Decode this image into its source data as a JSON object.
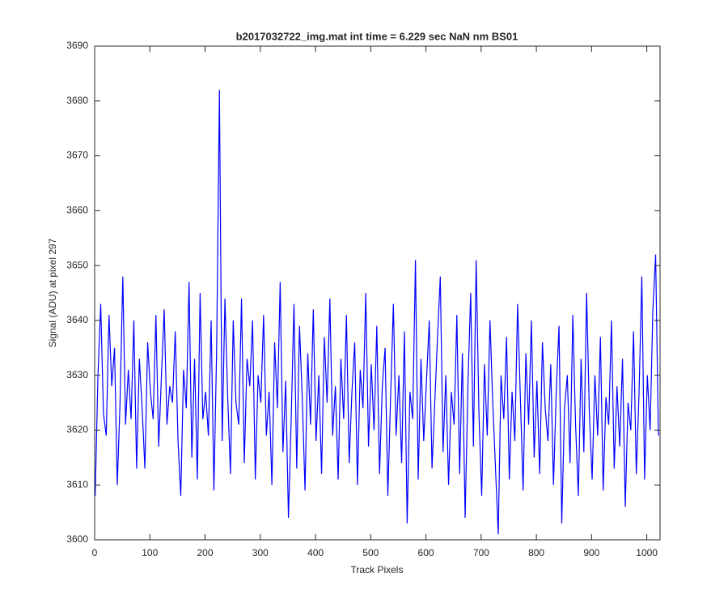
{
  "chart_data": {
    "type": "line",
    "title": "b2017032722_img.mat int time = 6.229 sec  NaN nm BS01",
    "x_label": "Track Pixels",
    "y_label": "Signal (ADU) at pixel 297",
    "xlim": [
      0,
      1024
    ],
    "ylim": [
      3600,
      3690
    ],
    "xticks": [
      0,
      100,
      200,
      300,
      400,
      500,
      600,
      700,
      800,
      900,
      1000
    ],
    "yticks": [
      3600,
      3610,
      3620,
      3630,
      3640,
      3650,
      3660,
      3670,
      3680,
      3690
    ],
    "grid": false,
    "x": [
      1,
      6,
      11,
      16,
      21,
      26,
      31,
      36,
      41,
      46,
      51,
      56,
      61,
      66,
      71,
      76,
      81,
      86,
      91,
      96,
      101,
      106,
      111,
      116,
      121,
      126,
      131,
      136,
      141,
      146,
      151,
      156,
      161,
      166,
      171,
      176,
      181,
      186,
      191,
      196,
      201,
      206,
      211,
      216,
      221,
      226,
      231,
      236,
      241,
      246,
      251,
      256,
      261,
      266,
      271,
      276,
      281,
      286,
      291,
      296,
      301,
      306,
      311,
      316,
      321,
      326,
      331,
      336,
      341,
      346,
      351,
      356,
      361,
      366,
      371,
      376,
      381,
      386,
      391,
      396,
      401,
      406,
      411,
      416,
      421,
      426,
      431,
      436,
      441,
      446,
      451,
      456,
      461,
      466,
      471,
      476,
      481,
      486,
      491,
      496,
      501,
      506,
      511,
      516,
      521,
      526,
      531,
      536,
      541,
      546,
      551,
      556,
      561,
      566,
      571,
      576,
      581,
      586,
      591,
      596,
      601,
      606,
      611,
      616,
      621,
      626,
      631,
      636,
      641,
      646,
      651,
      656,
      661,
      666,
      671,
      676,
      681,
      686,
      691,
      696,
      701,
      706,
      711,
      716,
      721,
      726,
      731,
      736,
      741,
      746,
      751,
      756,
      761,
      766,
      771,
      776,
      781,
      786,
      791,
      796,
      801,
      806,
      811,
      816,
      821,
      826,
      831,
      836,
      841,
      846,
      851,
      856,
      861,
      866,
      871,
      876,
      881,
      886,
      891,
      896,
      901,
      906,
      911,
      916,
      921,
      926,
      931,
      936,
      941,
      946,
      951,
      956,
      961,
      966,
      971,
      976,
      981,
      986,
      991,
      996,
      1001,
      1006,
      1011,
      1016,
      1021
    ],
    "series": [
      {
        "color": "#0000ff",
        "values": [
          3608,
          3630,
          3643,
          3623,
          3619,
          3641,
          3628,
          3635,
          3610,
          3625,
          3648,
          3621,
          3631,
          3622,
          3640,
          3613,
          3633,
          3624,
          3613,
          3636,
          3627,
          3622,
          3641,
          3617,
          3630,
          3642,
          3621,
          3628,
          3625,
          3638,
          3618,
          3608,
          3631,
          3624,
          3647,
          3615,
          3633,
          3611,
          3645,
          3622,
          3627,
          3619,
          3640,
          3609,
          3635,
          3682,
          3618,
          3644,
          3626,
          3612,
          3640,
          3625,
          3621,
          3644,
          3614,
          3633,
          3628,
          3640,
          3611,
          3630,
          3625,
          3641,
          3619,
          3627,
          3610,
          3636,
          3624,
          3647,
          3616,
          3629,
          3604,
          3622,
          3643,
          3613,
          3639,
          3626,
          3609,
          3634,
          3621,
          3642,
          3618,
          3630,
          3612,
          3637,
          3625,
          3644,
          3619,
          3628,
          3611,
          3633,
          3622,
          3641,
          3614,
          3627,
          3636,
          3610,
          3631,
          3624,
          3645,
          3617,
          3632,
          3620,
          3639,
          3612,
          3628,
          3635,
          3608,
          3626,
          3643,
          3619,
          3630,
          3614,
          3638,
          3603,
          3627,
          3622,
          3651,
          3611,
          3633,
          3618,
          3629,
          3640,
          3613,
          3625,
          3637,
          3648,
          3616,
          3630,
          3610,
          3627,
          3621,
          3641,
          3612,
          3634,
          3604,
          3628,
          3645,
          3617,
          3651,
          3623,
          3608,
          3632,
          3619,
          3640,
          3625,
          3613,
          3601,
          3630,
          3622,
          3637,
          3611,
          3627,
          3618,
          3643,
          3626,
          3609,
          3634,
          3621,
          3640,
          3615,
          3629,
          3612,
          3636,
          3624,
          3618,
          3632,
          3610,
          3627,
          3639,
          3603,
          3624,
          3630,
          3614,
          3641,
          3621,
          3608,
          3633,
          3616,
          3645,
          3623,
          3611,
          3630,
          3619,
          3637,
          3609,
          3626,
          3621,
          3640,
          3613,
          3628,
          3617,
          3633,
          3606,
          3625,
          3620,
          3638,
          3612,
          3627,
          3648,
          3611,
          3630,
          3620,
          3642,
          3652,
          3619
        ]
      }
    ]
  }
}
